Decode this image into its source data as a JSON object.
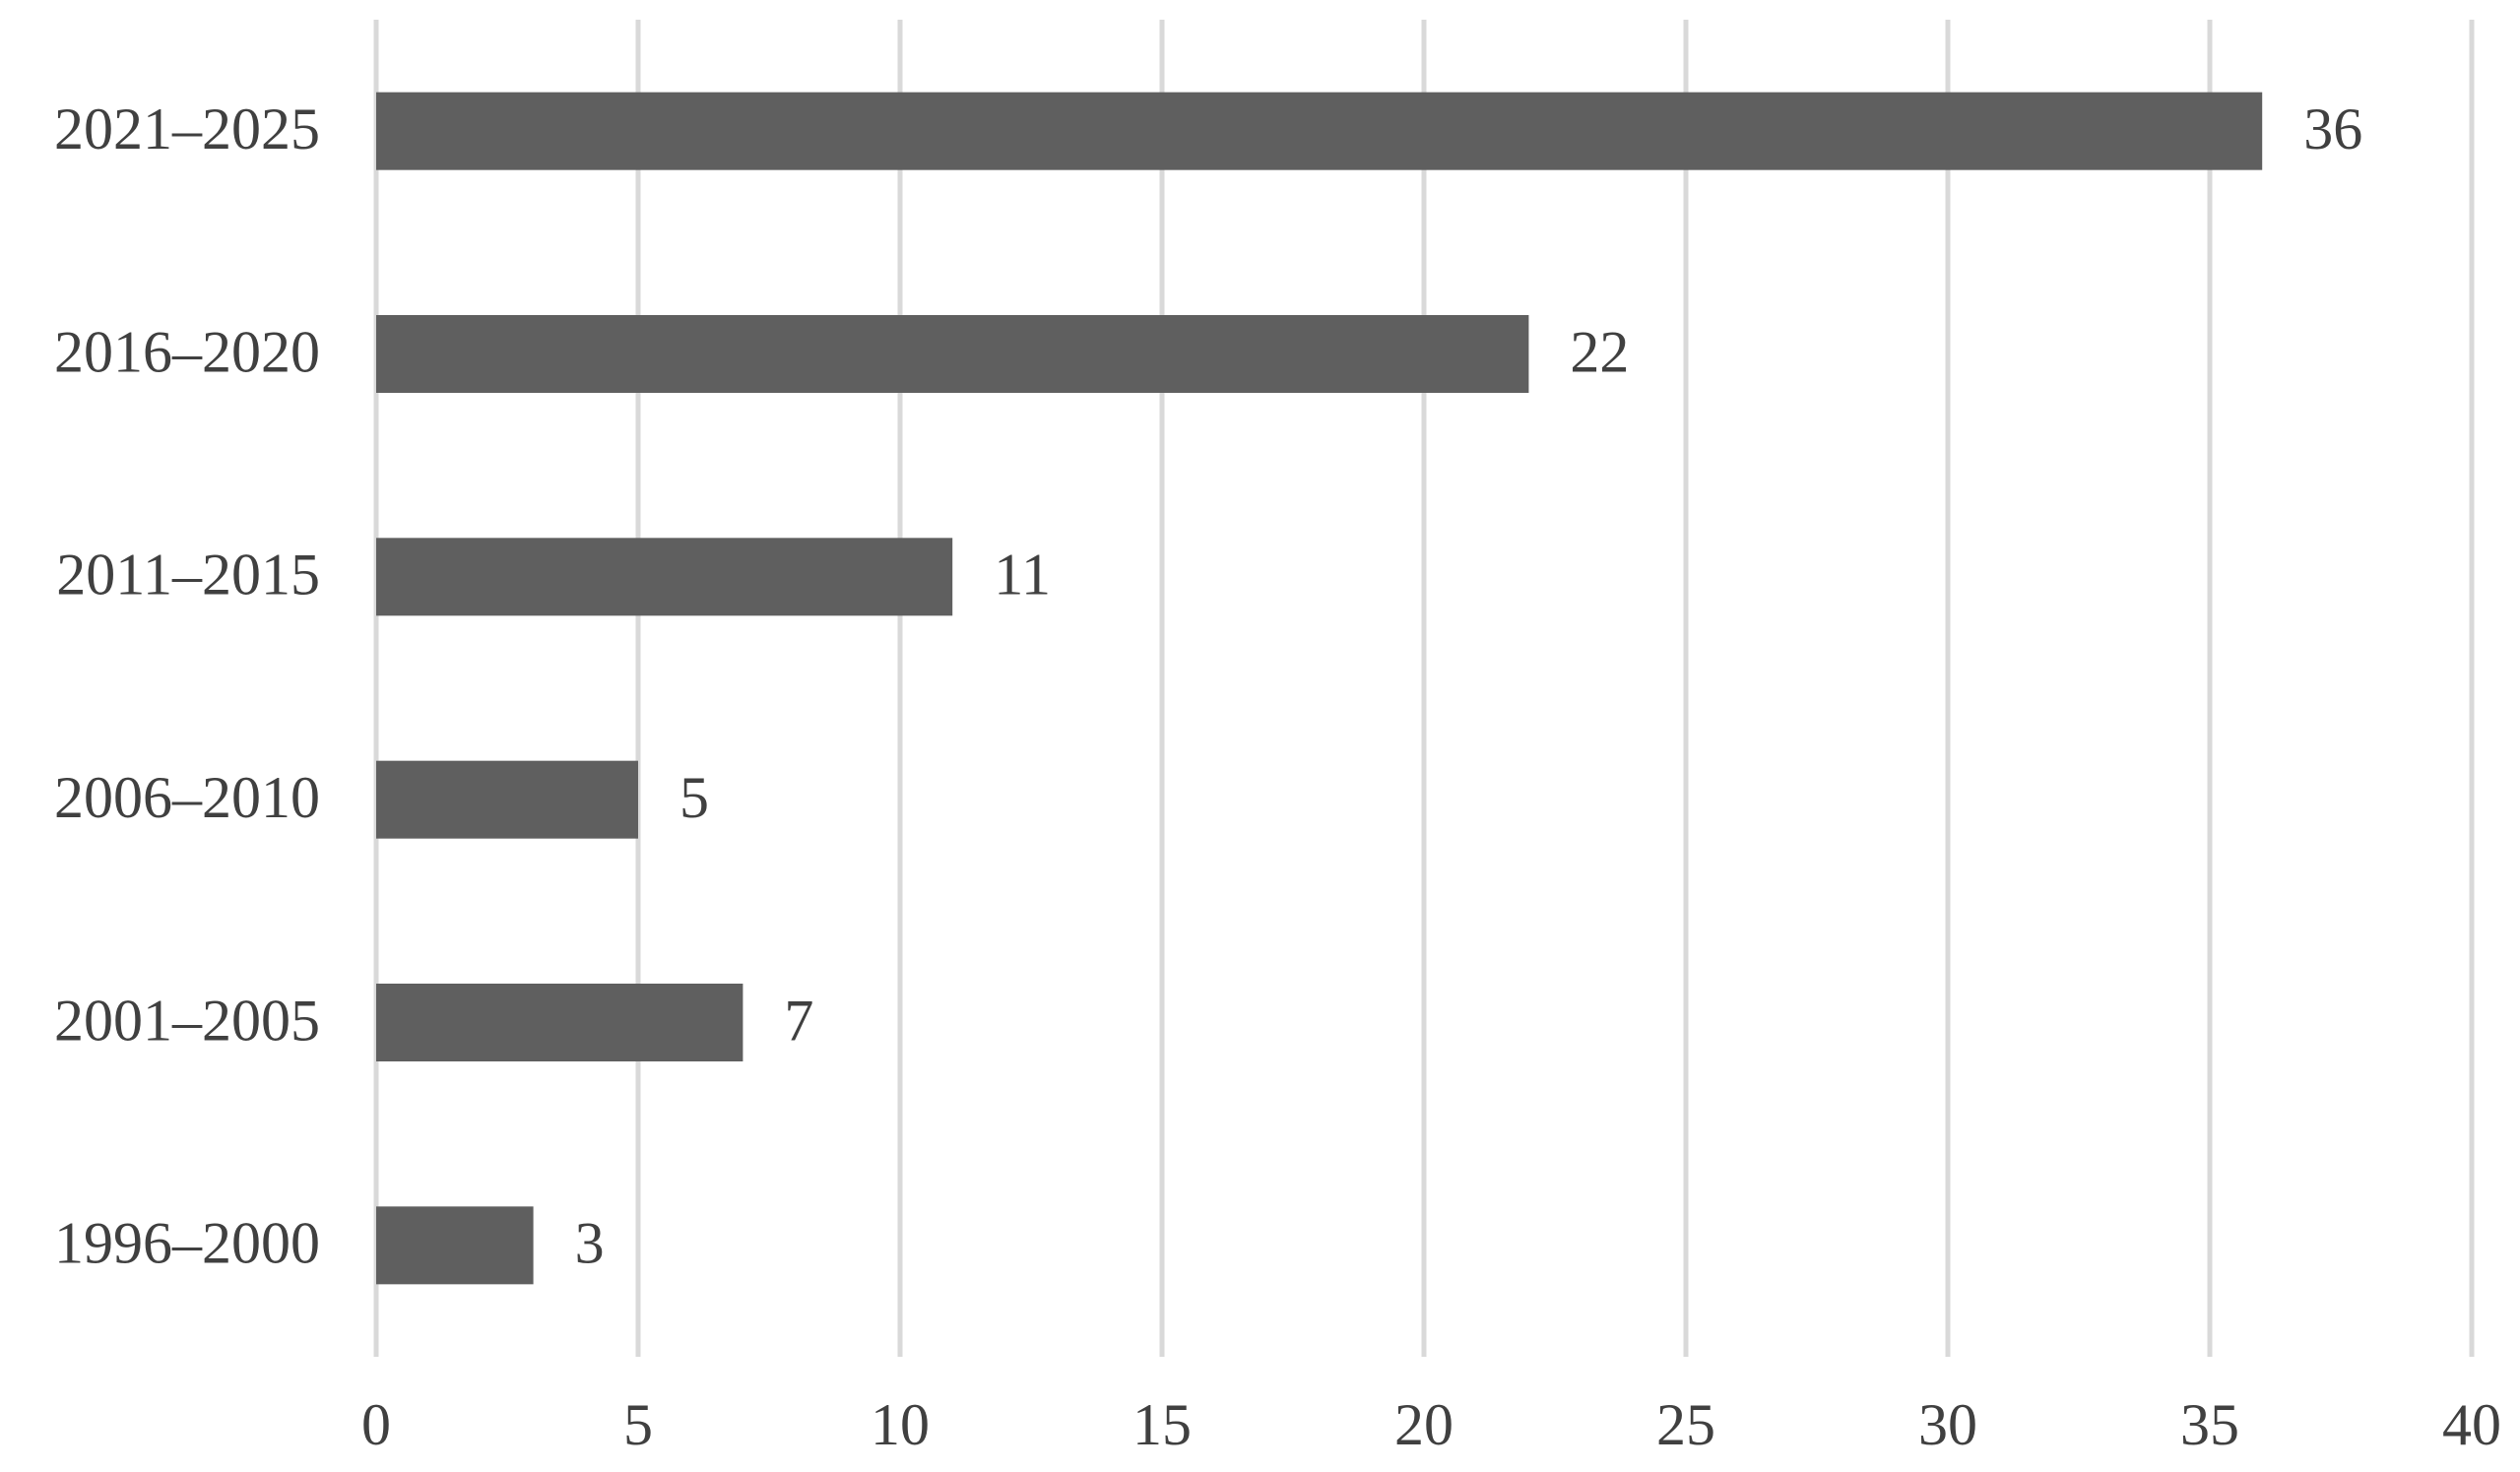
{
  "chart_data": {
    "type": "bar",
    "orientation": "horizontal",
    "categories": [
      "2021–2025",
      "2016–2020",
      "2011–2015",
      "2006–2010",
      "2001–2005",
      "1996–2000"
    ],
    "values": [
      36,
      22,
      11,
      5,
      7,
      3
    ],
    "color": "#5f5f5f",
    "xlim": [
      0,
      40
    ],
    "xticks": [
      0,
      5,
      10,
      15,
      20,
      25,
      30,
      35,
      40
    ],
    "grid": true
  }
}
